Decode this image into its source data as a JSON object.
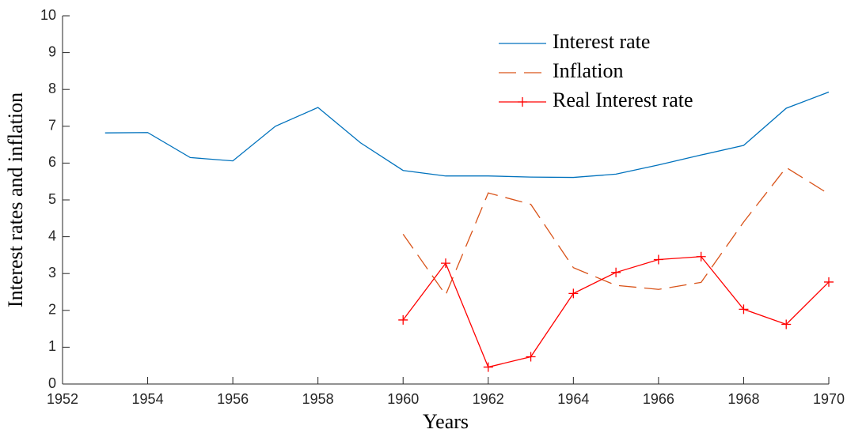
{
  "chart_data": {
    "type": "line",
    "xlabel": "Years",
    "ylabel": "Interest rates and inflation",
    "x": [
      1953,
      1954,
      1955,
      1956,
      1957,
      1958,
      1959,
      1960,
      1961,
      1962,
      1963,
      1964,
      1965,
      1966,
      1967,
      1968,
      1969,
      1970
    ],
    "series": [
      {
        "name": "Interest rate",
        "color": "#0072bd",
        "line_style": "solid",
        "values": [
          6.82,
          6.83,
          6.15,
          6.06,
          7.0,
          7.51,
          6.55,
          5.8,
          5.65,
          5.65,
          5.62,
          5.61,
          5.7,
          5.95,
          6.22,
          6.48,
          7.49,
          7.93
        ]
      },
      {
        "name": "Inflation",
        "color": "#d95319",
        "line_style": "dashed",
        "values": [
          null,
          null,
          null,
          null,
          null,
          null,
          null,
          4.07,
          2.42,
          5.19,
          4.88,
          3.16,
          2.68,
          2.57,
          2.76,
          4.4,
          5.88,
          5.16
        ]
      },
      {
        "name": "Real Interest rate",
        "color": "#ff0000",
        "line_style": "solid",
        "marker": "+",
        "values": [
          null,
          null,
          null,
          null,
          null,
          null,
          null,
          1.74,
          3.28,
          0.46,
          0.74,
          2.46,
          3.03,
          3.38,
          3.46,
          2.03,
          1.62,
          2.77
        ]
      }
    ],
    "xlim": [
      1952,
      1970
    ],
    "ylim": [
      0,
      10
    ],
    "xticks": [
      1952,
      1954,
      1956,
      1958,
      1960,
      1962,
      1964,
      1966,
      1968,
      1970
    ],
    "yticks": [
      0,
      1,
      2,
      3,
      4,
      5,
      6,
      7,
      8,
      9,
      10
    ],
    "grid": false,
    "legend": "upper right"
  }
}
